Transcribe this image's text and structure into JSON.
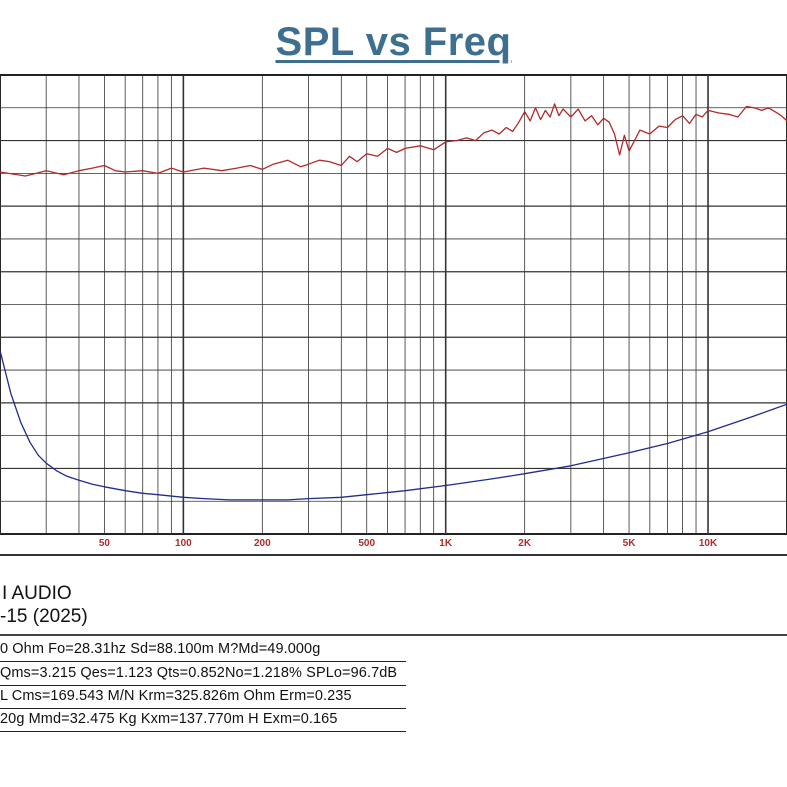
{
  "title": "SPL vs Freq",
  "chart_data": {
    "type": "line",
    "x_scale": "log",
    "xlim": [
      20,
      20000
    ],
    "x_ticks": [
      {
        "value": 50,
        "label": "50"
      },
      {
        "value": 100,
        "label": "100"
      },
      {
        "value": 200,
        "label": "200"
      },
      {
        "value": 500,
        "label": "500"
      },
      {
        "value": 1000,
        "label": "1K"
      },
      {
        "value": 2000,
        "label": "2K"
      },
      {
        "value": 5000,
        "label": "5K"
      },
      {
        "value": 10000,
        "label": "10K"
      }
    ],
    "grid": true,
    "series": [
      {
        "color": "#b22a2a",
        "x": [
          20,
          25,
          30,
          35,
          40,
          45,
          50,
          55,
          60,
          70,
          80,
          90,
          100,
          120,
          140,
          160,
          180,
          200,
          220,
          250,
          280,
          300,
          330,
          360,
          400,
          430,
          460,
          500,
          550,
          600,
          650,
          700,
          800,
          900,
          1000,
          1100,
          1200,
          1300,
          1400,
          1500,
          1600,
          1700,
          1800,
          1900,
          2000,
          2100,
          2200,
          2300,
          2400,
          2500,
          2600,
          2700,
          2800,
          3000,
          3200,
          3400,
          3600,
          3800,
          4000,
          4200,
          4400,
          4600,
          4800,
          5000,
          5500,
          6000,
          6500,
          7000,
          7500,
          8000,
          8500,
          9000,
          9500,
          10000,
          11000,
          12000,
          13000,
          14000,
          15000,
          16000,
          17000,
          18000,
          19000,
          20000
        ],
        "values": [
          2.6,
          2.3,
          2.7,
          2.4,
          2.7,
          2.9,
          3.1,
          2.7,
          2.6,
          2.7,
          2.5,
          2.9,
          2.6,
          2.9,
          2.7,
          2.9,
          3.1,
          2.8,
          3.2,
          3.5,
          3.0,
          3.2,
          3.5,
          3.4,
          3.1,
          3.8,
          3.4,
          4.0,
          3.8,
          4.4,
          4.1,
          4.4,
          4.6,
          4.3,
          4.9,
          5.0,
          5.2,
          5.0,
          5.6,
          5.8,
          5.5,
          6.0,
          5.7,
          6.4,
          7.2,
          6.5,
          7.5,
          6.6,
          7.3,
          6.8,
          7.8,
          6.9,
          7.4,
          6.8,
          7.4,
          6.5,
          6.9,
          6.2,
          6.7,
          6.4,
          5.5,
          3.9,
          5.4,
          4.2,
          5.8,
          5.5,
          6.1,
          6.0,
          6.6,
          6.9,
          6.3,
          7.0,
          6.8,
          7.3,
          7.1,
          7.0,
          6.8,
          7.6,
          7.5,
          7.3,
          7.5,
          7.2,
          6.9,
          6.5
        ]
      },
      {
        "color": "#1f2d8c",
        "x": [
          20,
          22,
          24,
          26,
          28,
          30,
          33,
          36,
          40,
          45,
          50,
          60,
          70,
          80,
          100,
          120,
          150,
          180,
          200,
          250,
          300,
          400,
          500,
          700,
          1000,
          1500,
          2000,
          3000,
          5000,
          7000,
          10000,
          15000,
          20000
        ],
        "values": [
          -11.0,
          -14.3,
          -16.5,
          -18.0,
          -19.0,
          -19.6,
          -20.2,
          -20.6,
          -20.9,
          -21.2,
          -21.4,
          -21.7,
          -21.9,
          -22.0,
          -22.2,
          -22.3,
          -22.4,
          -22.4,
          -22.4,
          -22.4,
          -22.3,
          -22.2,
          -22.0,
          -21.7,
          -21.3,
          -20.8,
          -20.4,
          -19.8,
          -18.8,
          -18.1,
          -17.2,
          -16.0,
          -15.1
        ]
      }
    ]
  },
  "info": {
    "brand": "I AUDIO",
    "model": "-15 (2025)",
    "params": [
      "0 Ohm Fo=28.31hz Sd=88.100m M?Md=49.000g",
      "Qms=3.215 Qes=1.123 Qts=0.852No=1.218% SPLo=96.7dB",
      "L Cms=169.543 M/N Krm=325.826m Ohm Erm=0.235",
      "20g Mmd=32.475 Kg Kxm=137.770m H Exm=0.165"
    ]
  },
  "colors": {
    "title": "#3f6f8e",
    "x_tick_labels": "#b22a2a",
    "grid": "#333333"
  }
}
